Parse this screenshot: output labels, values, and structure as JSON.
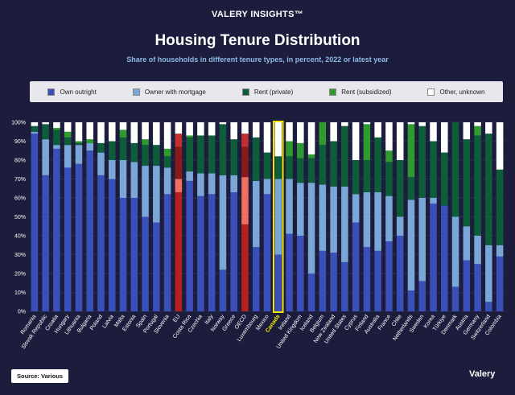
{
  "header": {
    "brand": "VALERY INSIGHTS™",
    "title": "Housing Tenure Distribution",
    "subtitle": "Share of households in different tenure types, in percent, 2022 or latest year"
  },
  "footer": {
    "source": "Source: Various",
    "logo": "Valery"
  },
  "chart_data": {
    "type": "bar",
    "stacked": true,
    "ylim": [
      0,
      100
    ],
    "yticks": [
      "0%",
      "10%",
      "20%",
      "30%",
      "40%",
      "50%",
      "60%",
      "70%",
      "80%",
      "90%",
      "100%"
    ],
    "grid": true,
    "legend_position": "top",
    "categories": [
      "Romania",
      "Slovak Republic",
      "Croatia",
      "Hungary",
      "Lithuania",
      "Bulgaria",
      "Poland",
      "Latvia",
      "Malta",
      "Estonia",
      "Spain",
      "Portugal",
      "Slovenia",
      "EU",
      "Costa Rica",
      "Czechia",
      "Italy",
      "Norway",
      "Greece",
      "OECD",
      "Luxembourg",
      "Mexico",
      "Canada",
      "Ireland",
      "United Kingdom",
      "Iceland",
      "Belgium",
      "New Zealand",
      "United States",
      "Cyprus",
      "Finland",
      "Australia",
      "France",
      "Chile",
      "Netherlands",
      "Sweden",
      "Korea",
      "Türkiye",
      "Denmark",
      "Austria",
      "Germany",
      "Switzerland",
      "Colombia"
    ],
    "highlight": {
      "Canada": "outline",
      "EU": "red",
      "OECD": "red"
    },
    "series": [
      {
        "name": "Own outright",
        "color": "#3b4fb8",
        "values": [
          94,
          72,
          86,
          76,
          78,
          85,
          72,
          70,
          60,
          60,
          50,
          47,
          62,
          63,
          69,
          61,
          62,
          22,
          63,
          46,
          34,
          62,
          30,
          41,
          40,
          20,
          32,
          31,
          26,
          47,
          34,
          32,
          37,
          40,
          11,
          16,
          57,
          56,
          13,
          27,
          25,
          5,
          29
        ]
      },
      {
        "name": "Owner with mortgage",
        "color": "#7ba7d8",
        "values": [
          1,
          19,
          2,
          12,
          10,
          4,
          12,
          10,
          20,
          19,
          27,
          30,
          14,
          7,
          5,
          12,
          11,
          50,
          9,
          25,
          35,
          8,
          40,
          29,
          28,
          48,
          35,
          35,
          40,
          15,
          29,
          31,
          24,
          10,
          48,
          44,
          3,
          0,
          37,
          18,
          15,
          30,
          6
        ]
      },
      {
        "name": "Rent (private)",
        "color": "#0d5c3a",
        "values": [
          3,
          8,
          8,
          4,
          1,
          0,
          5,
          10,
          12,
          10,
          11,
          11,
          6,
          17,
          18,
          20,
          20,
          27,
          19,
          16,
          23,
          14,
          12,
          12,
          13,
          13,
          21,
          24,
          32,
          18,
          17,
          29,
          18,
          30,
          12,
          38,
          30,
          28,
          50,
          46,
          53,
          59,
          40
        ]
      },
      {
        "name": "Rent (subsidized)",
        "color": "#2f9b2f",
        "values": [
          0,
          0,
          1,
          3,
          1,
          2,
          0,
          0,
          4,
          0,
          3,
          0,
          4,
          7,
          1,
          0,
          0,
          0,
          0,
          7,
          0,
          0,
          0,
          8,
          8,
          2,
          12,
          0,
          0,
          0,
          19,
          0,
          6,
          0,
          28,
          0,
          0,
          0,
          0,
          0,
          5,
          0,
          0
        ]
      },
      {
        "name": "Other, unknown",
        "color": "#ffffff",
        "values": [
          2,
          1,
          3,
          5,
          10,
          9,
          11,
          10,
          4,
          11,
          9,
          12,
          14,
          6,
          7,
          7,
          7,
          1,
          9,
          6,
          8,
          16,
          18,
          10,
          11,
          17,
          0,
          10,
          2,
          20,
          1,
          8,
          15,
          20,
          1,
          2,
          10,
          16,
          0,
          9,
          2,
          6,
          25
        ]
      }
    ]
  }
}
